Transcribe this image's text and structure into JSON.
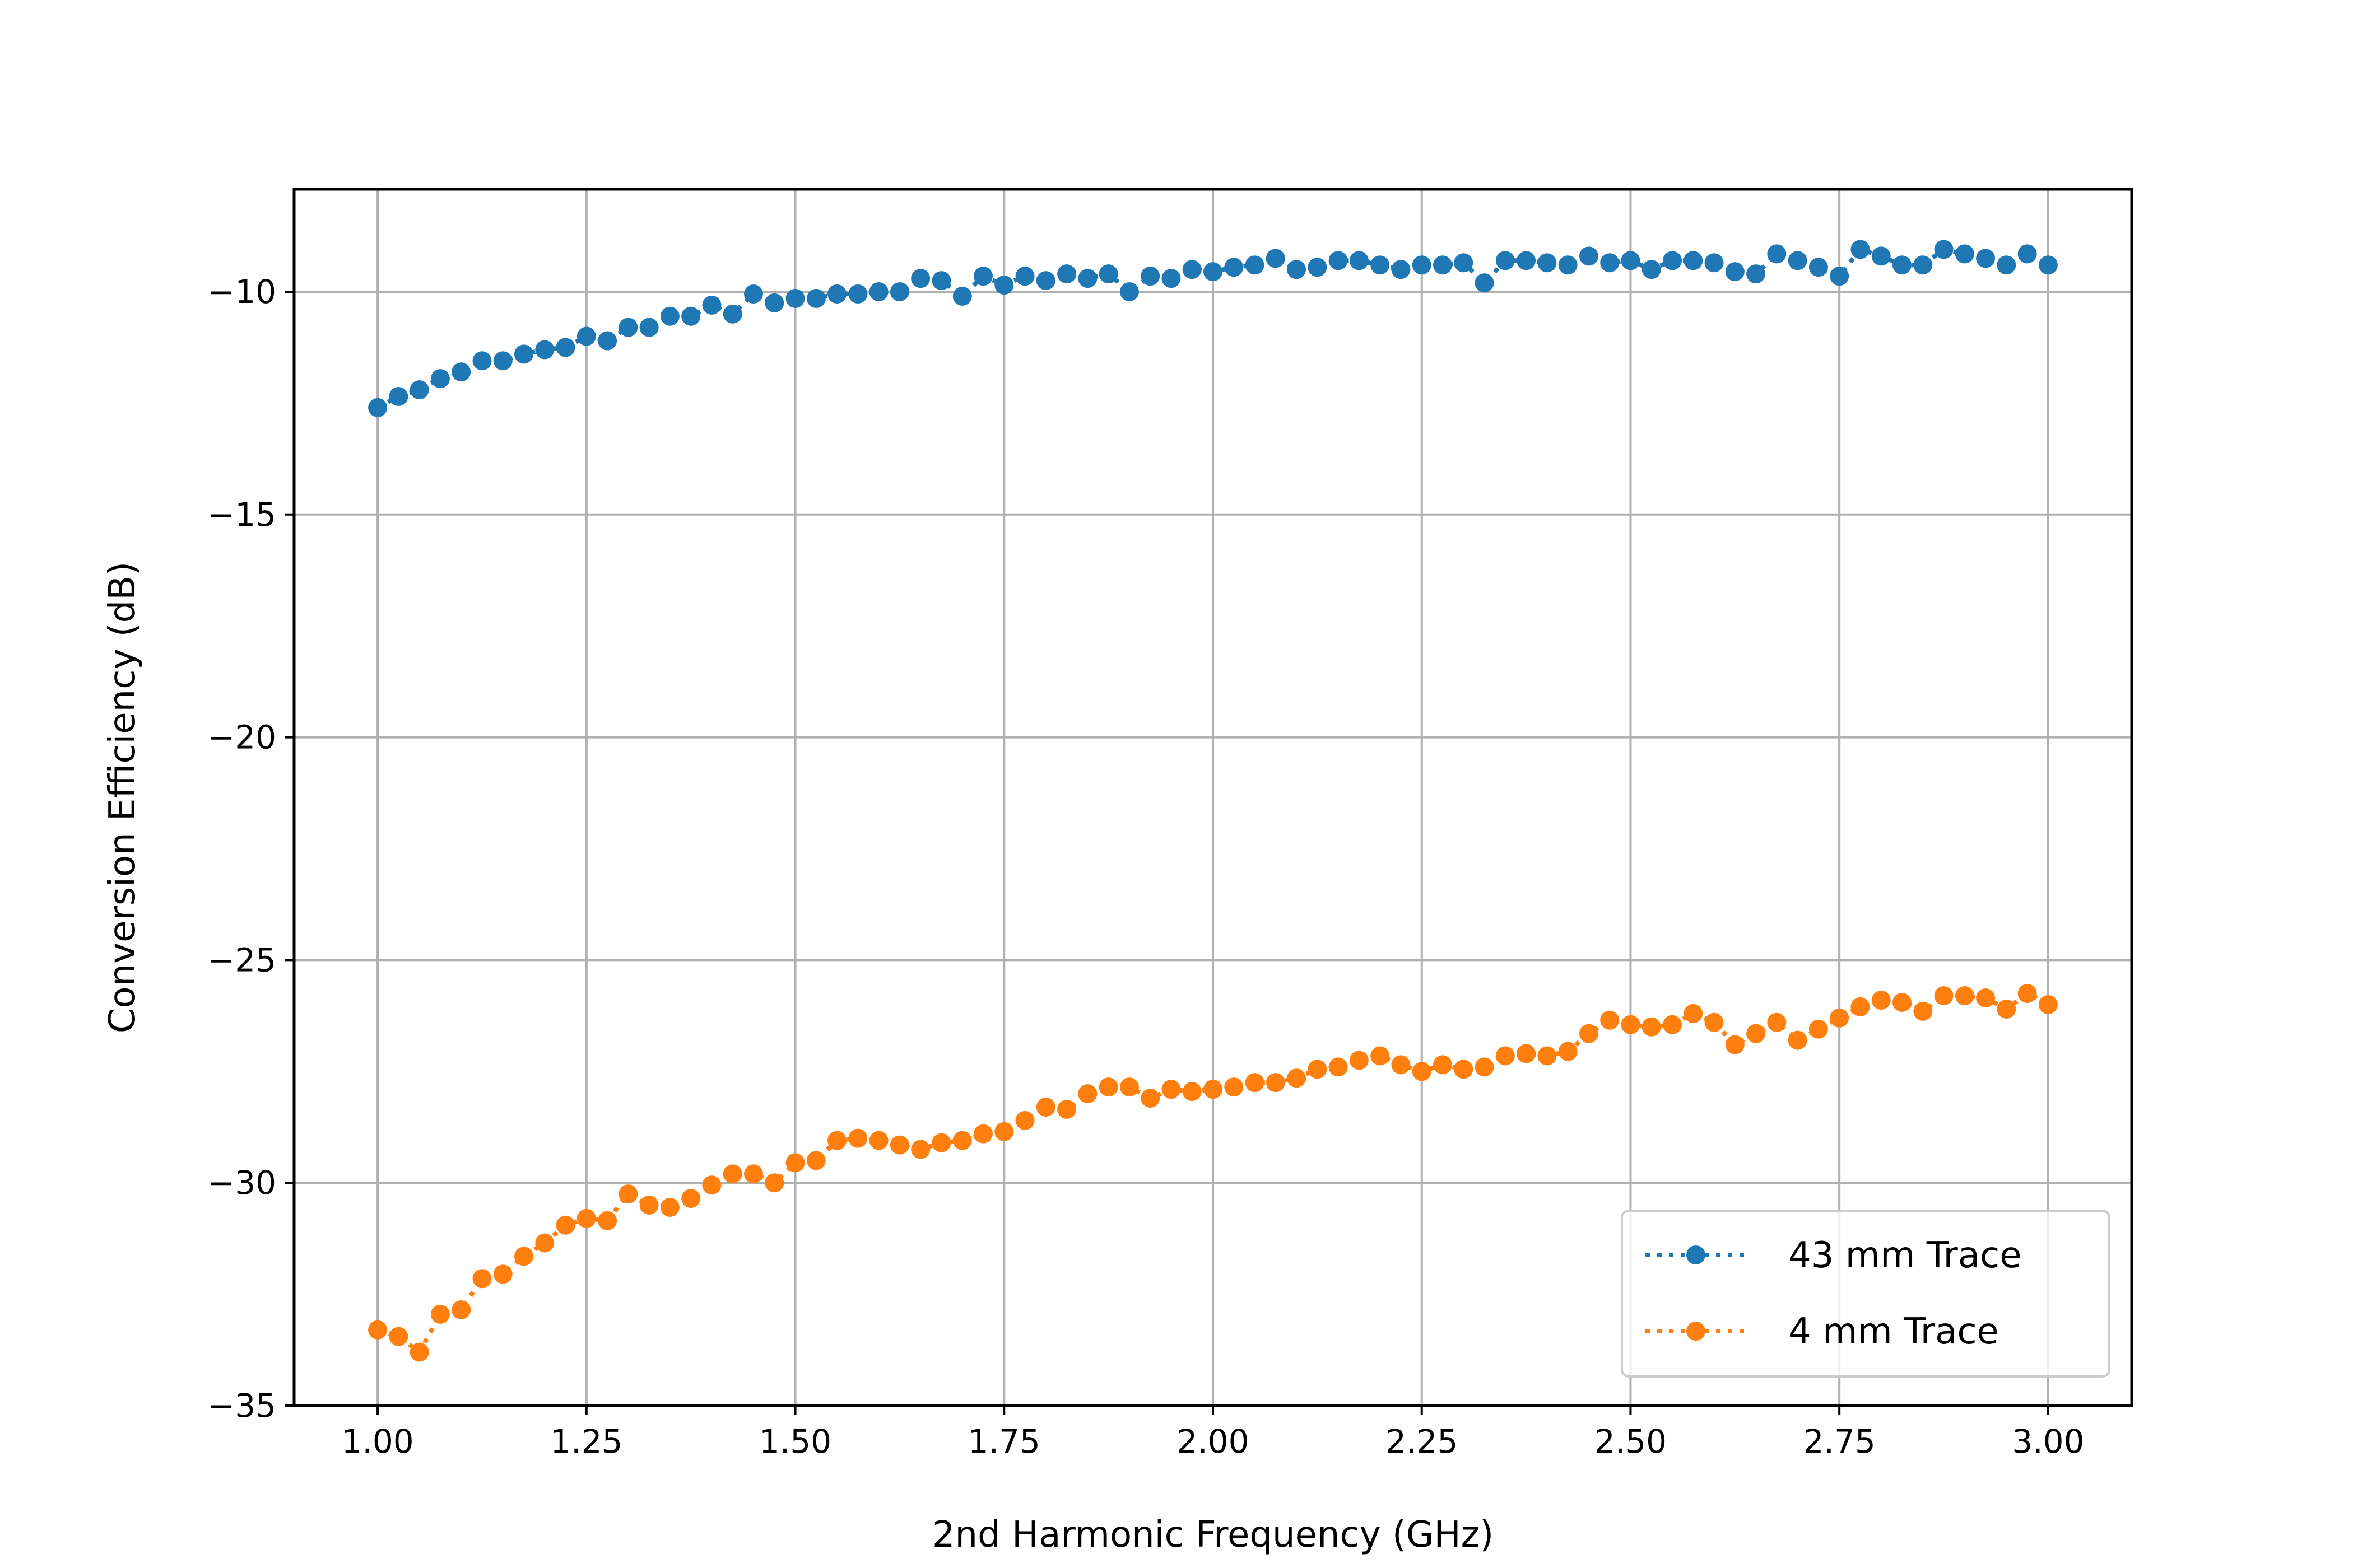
{
  "chart_data": {
    "type": "line",
    "title": "",
    "xlabel": "2nd Harmonic Frequency (GHz)",
    "ylabel": "Conversion Efficiency (dB)",
    "xlim": [
      0.9,
      3.1
    ],
    "ylim": [
      -35,
      -7.7
    ],
    "xticks": [
      1.0,
      1.25,
      1.5,
      1.75,
      2.0,
      2.25,
      2.5,
      2.75,
      3.0
    ],
    "xtick_labels": [
      "1.00",
      "1.25",
      "1.50",
      "1.75",
      "2.00",
      "2.25",
      "2.50",
      "2.75",
      "3.00"
    ],
    "yticks": [
      -10,
      -15,
      -20,
      -25,
      -30,
      -35
    ],
    "ytick_labels": [
      "−10",
      "−15",
      "−20",
      "−25",
      "−30",
      "−35"
    ],
    "grid": true,
    "legend_position": "lower-right",
    "x": [
      1.0,
      1.025,
      1.05,
      1.075,
      1.1,
      1.125,
      1.15,
      1.175,
      1.2,
      1.225,
      1.25,
      1.275,
      1.3,
      1.325,
      1.35,
      1.375,
      1.4,
      1.425,
      1.45,
      1.475,
      1.5,
      1.525,
      1.55,
      1.575,
      1.6,
      1.625,
      1.65,
      1.675,
      1.7,
      1.725,
      1.75,
      1.775,
      1.8,
      1.825,
      1.85,
      1.875,
      1.9,
      1.925,
      1.95,
      1.975,
      2.0,
      2.025,
      2.05,
      2.075,
      2.1,
      2.125,
      2.15,
      2.175,
      2.2,
      2.225,
      2.25,
      2.275,
      2.3,
      2.325,
      2.35,
      2.375,
      2.4,
      2.425,
      2.45,
      2.475,
      2.5,
      2.525,
      2.55,
      2.575,
      2.6,
      2.625,
      2.65,
      2.675,
      2.7,
      2.725,
      2.75,
      2.775,
      2.8,
      2.825,
      2.85,
      2.875,
      2.9,
      2.925,
      2.95,
      2.975,
      3.0
    ],
    "series": [
      {
        "name": "43 mm Trace",
        "color": "#1f77b4",
        "values": [
          -12.6,
          -12.35,
          -12.2,
          -11.95,
          -11.8,
          -11.55,
          -11.55,
          -11.4,
          -11.3,
          -11.25,
          -11.0,
          -11.1,
          -10.8,
          -10.8,
          -10.55,
          -10.55,
          -10.3,
          -10.5,
          -10.05,
          -10.25,
          -10.15,
          -10.15,
          -10.05,
          -10.05,
          -10.0,
          -10.0,
          -9.7,
          -9.75,
          -10.1,
          -9.65,
          -9.85,
          -9.65,
          -9.75,
          -9.6,
          -9.7,
          -9.6,
          -10.0,
          -9.65,
          -9.7,
          -9.5,
          -9.55,
          -9.45,
          -9.4,
          -9.25,
          -9.5,
          -9.45,
          -9.3,
          -9.3,
          -9.4,
          -9.5,
          -9.4,
          -9.4,
          -9.35,
          -9.8,
          -9.3,
          -9.3,
          -9.35,
          -9.4,
          -9.2,
          -9.35,
          -9.3,
          -9.5,
          -9.3,
          -9.3,
          -9.35,
          -9.55,
          -9.6,
          -9.15,
          -9.3,
          -9.45,
          -9.65,
          -9.05,
          -9.2,
          -9.4,
          -9.4,
          -9.05,
          -9.15,
          -9.25,
          -9.4,
          -9.15,
          -9.4
        ]
      },
      {
        "name": "4 mm Trace",
        "color": "#ff7f0e",
        "values": [
          -33.3,
          -33.45,
          -33.8,
          -32.95,
          -32.85,
          -32.15,
          -32.05,
          -31.65,
          -31.35,
          -30.95,
          -30.8,
          -30.85,
          -30.25,
          -30.5,
          -30.55,
          -30.35,
          -30.05,
          -29.8,
          -29.8,
          -30.0,
          -29.55,
          -29.5,
          -29.05,
          -29.0,
          -29.05,
          -29.15,
          -29.25,
          -29.1,
          -29.05,
          -28.9,
          -28.85,
          -28.6,
          -28.3,
          -28.35,
          -28.0,
          -27.85,
          -27.85,
          -28.1,
          -27.9,
          -27.95,
          -27.9,
          -27.85,
          -27.75,
          -27.75,
          -27.65,
          -27.45,
          -27.4,
          -27.25,
          -27.15,
          -27.35,
          -27.5,
          -27.35,
          -27.45,
          -27.4,
          -27.15,
          -27.1,
          -27.15,
          -27.05,
          -26.65,
          -26.35,
          -26.45,
          -26.5,
          -26.45,
          -26.2,
          -26.4,
          -26.9,
          -26.65,
          -26.4,
          -26.8,
          -26.55,
          -26.3,
          -26.05,
          -25.9,
          -25.95,
          -26.15,
          -25.8,
          -25.8,
          -25.85,
          -26.1,
          -25.75,
          -26.0
        ]
      }
    ]
  }
}
